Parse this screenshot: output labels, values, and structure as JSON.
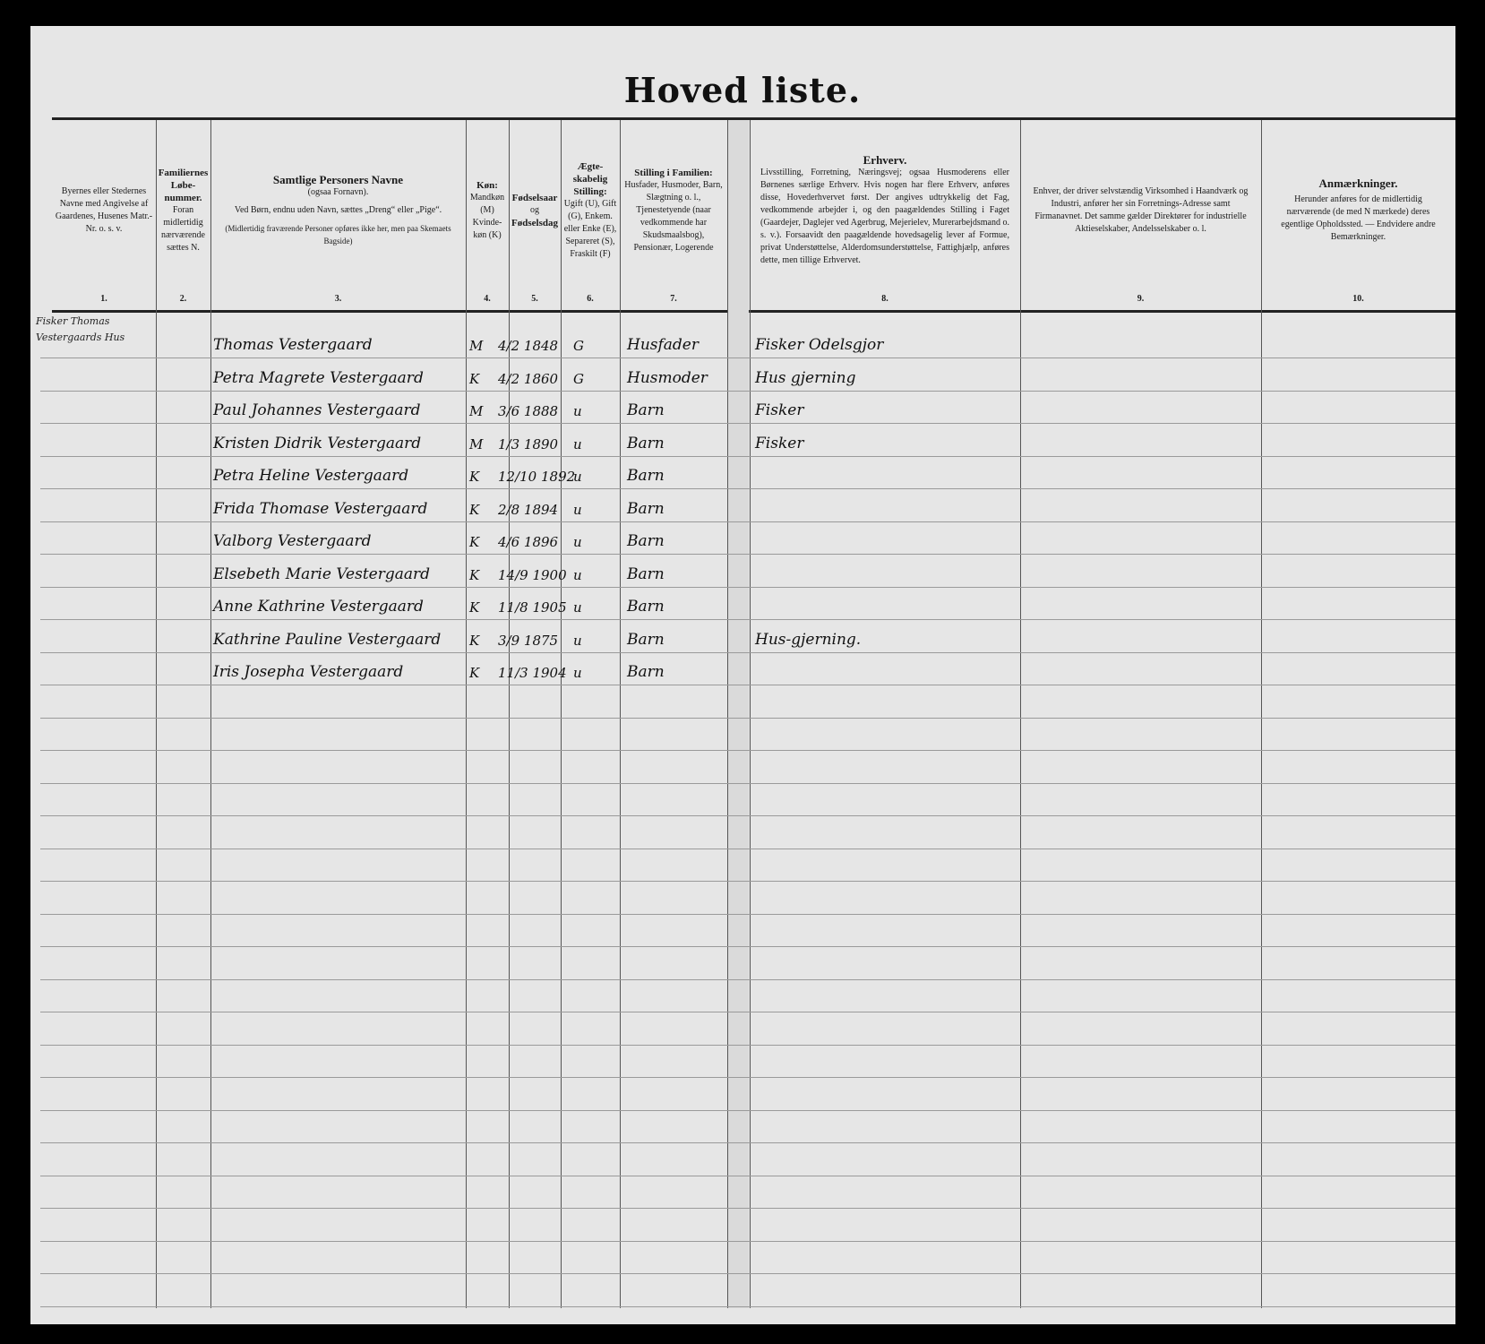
{
  "title": "Hoved liste.",
  "columns": [
    {
      "num": "1.",
      "text": "Byernes eller Stedernes Navne med Angivelse af Gaardenes, Husenes Matr.-Nr. o. s. v."
    },
    {
      "num": "2.",
      "head": "Familiernes Løbe-nummer.",
      "text": "Foran midlertidig nærværende sættes N."
    },
    {
      "num": "3.",
      "head": "Samtlige Personers Navne",
      "sub": "(ogsaa Fornavn).",
      "text": "Ved Børn, endnu uden Navn, sættes „Dreng“ eller „Pige“.",
      "note": "(Midlertidig fraværende Personer opføres ikke her, men paa Skemaets Bagside)"
    },
    {
      "num": "4.",
      "head": "Køn:",
      "text": "Mandkøn (M) Kvinde-køn (K)"
    },
    {
      "num": "5.",
      "head": "Fødselsaar",
      "sub": "og",
      "text": "Fødselsdag"
    },
    {
      "num": "6.",
      "head": "Ægte-skabelig Stilling:",
      "text": "Ugift (U), Gift (G), Enkem. eller Enke (E), Separeret (S), Fraskilt (F)"
    },
    {
      "num": "7.",
      "head": "Stilling i Familien:",
      "text": "Husfader, Husmoder, Barn, Slægtning o. l., Tjenestetyende (naar vedkommende har Skudsmaalsbog), Pensionær, Logerende"
    },
    {
      "num": "8.",
      "head": "Erhverv.",
      "text": "Livsstilling, Forretning, Næringsvej; ogsaa Husmoderens eller Børnenes særlige Erhverv. Hvis nogen har flere Erhverv, anføres disse, Hovederhvervet først. Der angives udtrykkelig det Fag, vedkommende arbejder i, og den paagældendes Stilling i Faget (Gaardejer, Daglejer ved Agerbrug, Mejerielev, Murerarbejdsmand o. s. v.). Forsaavidt den paagældende hovedsagelig lever af Formue, privat Understøttelse, Alderdomsunderstøttelse, Fattighjælp, anføres dette, men tillige Erhvervet."
    },
    {
      "num": "9.",
      "text": "Enhver, der driver selvstændig Virksomhed i Haandværk og Industri, anfører her sin Forretnings-Adresse samt Firmanavnet. Det samme gælder Direktører for industrielle Aktieselskaber, Andelsselskaber o. l."
    },
    {
      "num": "10.",
      "head": "Anmærkninger.",
      "text": "Herunder anføres for de midlertidig nærværende (de med N mærkede) deres egentlige Opholdssted. — Endvidere andre Bemærkninger."
    }
  ],
  "address": "Fisker Thomas Vestergaards Hus",
  "persons": [
    {
      "name": "Thomas Vestergaard",
      "sex": "M",
      "born": "4/2 1848",
      "marital": "G",
      "position": "Husfader",
      "occupation": "Fisker Odelsgjor"
    },
    {
      "name": "Petra Magrete Vestergaard",
      "sex": "K",
      "born": "4/2 1860",
      "marital": "G",
      "position": "Husmoder",
      "occupation": "Hus gjerning"
    },
    {
      "name": "Paul Johannes Vestergaard",
      "sex": "M",
      "born": "3/6 1888",
      "marital": "u",
      "position": "Barn",
      "occupation": "Fisker"
    },
    {
      "name": "Kristen Didrik Vestergaard",
      "sex": "M",
      "born": "1/3 1890",
      "marital": "u",
      "position": "Barn",
      "occupation": "Fisker"
    },
    {
      "name": "Petra Heline Vestergaard",
      "sex": "K",
      "born": "12/10 1892",
      "marital": "u",
      "position": "Barn",
      "occupation": ""
    },
    {
      "name": "Frida Thomase Vestergaard",
      "sex": "K",
      "born": "2/8 1894",
      "marital": "u",
      "position": "Barn",
      "occupation": ""
    },
    {
      "name": "Valborg Vestergaard",
      "sex": "K",
      "born": "4/6 1896",
      "marital": "u",
      "position": "Barn",
      "occupation": ""
    },
    {
      "name": "Elsebeth Marie Vestergaard",
      "sex": "K",
      "born": "14/9 1900",
      "marital": "u",
      "position": "Barn",
      "occupation": ""
    },
    {
      "name": "Anne Kathrine Vestergaard",
      "sex": "K",
      "born": "11/8 1905",
      "marital": "u",
      "position": "Barn",
      "occupation": ""
    },
    {
      "name": "Kathrine Pauline Vestergaard",
      "sex": "K",
      "born": "3/9 1875",
      "marital": "u",
      "position": "Barn",
      "occupation": "Hus-gjerning."
    },
    {
      "name": "Iris Josepha Vestergaard",
      "sex": "K",
      "born": "11/3 1904",
      "marital": "u",
      "position": "Barn",
      "occupation": ""
    }
  ]
}
